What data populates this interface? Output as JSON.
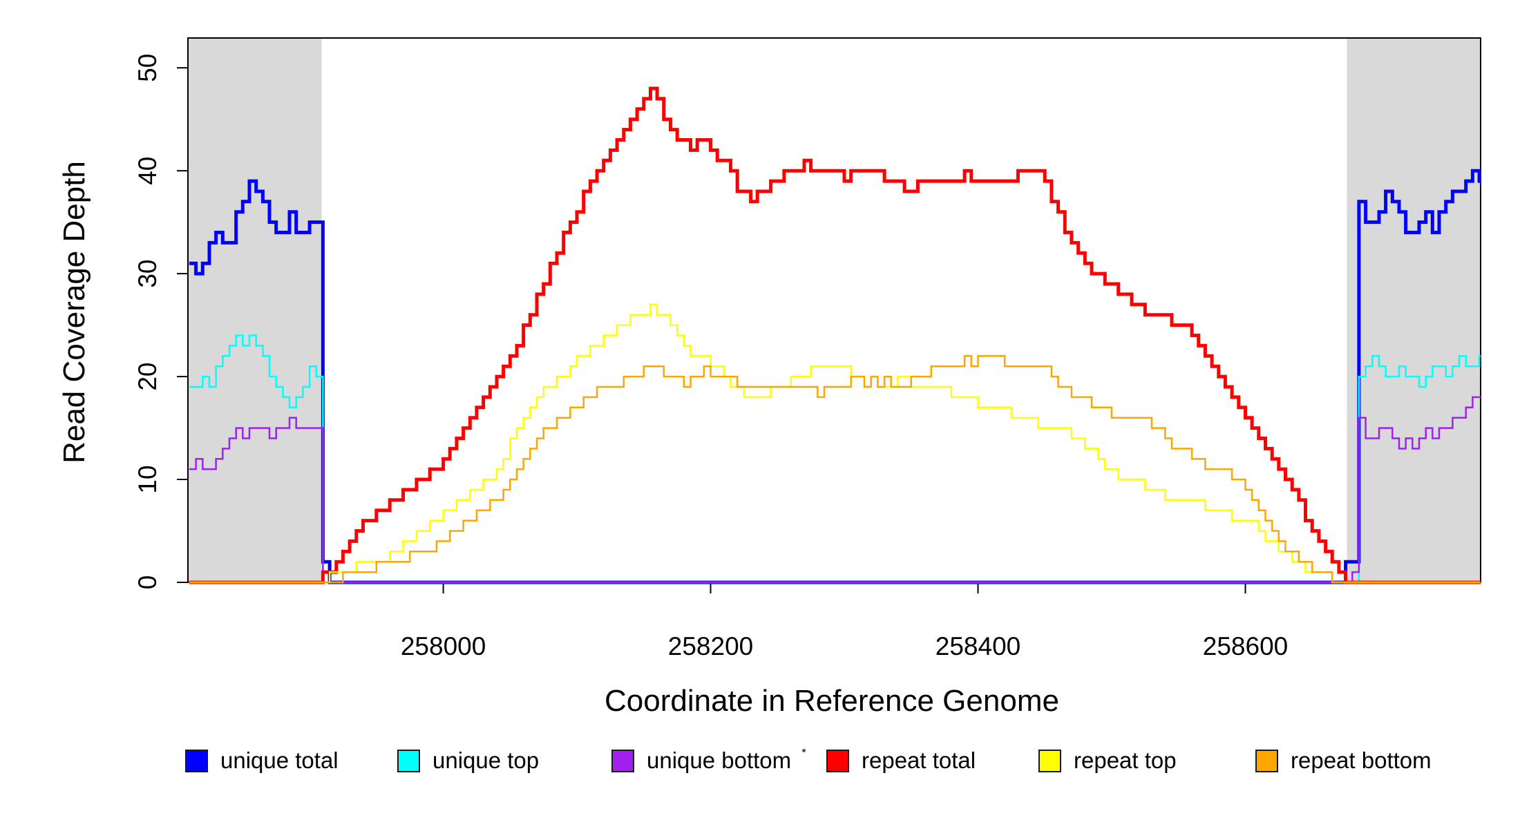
{
  "chart_data": {
    "type": "line",
    "line_style": "step-after",
    "title": "",
    "xlabel": "Coordinate in Reference Genome",
    "ylabel": "Read Coverage Depth",
    "xlim": [
      257809,
      258776
    ],
    "ylim": [
      0,
      52.9
    ],
    "x_ticks": [
      258000,
      258200,
      258400,
      258600
    ],
    "y_ticks": [
      0,
      10,
      20,
      30,
      40,
      50
    ],
    "grid": false,
    "background_color": "#FFFFFF",
    "axis_color": "#000000",
    "shaded_regions": [
      {
        "x0": 257809,
        "x1": 257909,
        "color": "#D9D9D9"
      },
      {
        "x0": 258676,
        "x1": 258776,
        "color": "#D9D9D9"
      }
    ],
    "sampling": {
      "x0": 257810,
      "dx": 5
    },
    "series": [
      {
        "name": "unique total",
        "color": "#0000FF",
        "width": 5,
        "values": [
          31,
          30,
          31,
          33,
          34,
          33,
          33,
          36,
          37,
          39,
          38,
          37,
          35,
          34,
          34,
          36,
          34,
          34,
          35,
          35,
          2,
          0,
          0,
          0,
          0,
          0,
          0,
          0,
          0,
          0,
          0,
          0,
          0,
          0,
          0,
          0,
          0,
          0,
          0,
          0,
          0,
          0,
          0,
          0,
          0,
          0,
          0,
          0,
          0,
          0,
          0,
          0,
          0,
          0,
          0,
          0,
          0,
          0,
          0,
          0,
          0,
          0,
          0,
          0,
          0,
          0,
          0,
          0,
          0,
          0,
          0,
          0,
          0,
          0,
          0,
          0,
          0,
          0,
          0,
          0,
          0,
          0,
          0,
          0,
          0,
          0,
          0,
          0,
          0,
          0,
          0,
          0,
          0,
          0,
          0,
          0,
          0,
          0,
          0,
          0,
          0,
          0,
          0,
          0,
          0,
          0,
          0,
          0,
          0,
          0,
          0,
          0,
          0,
          0,
          0,
          0,
          0,
          0,
          0,
          0,
          0,
          0,
          0,
          0,
          0,
          0,
          0,
          0,
          0,
          0,
          0,
          0,
          0,
          0,
          0,
          0,
          0,
          0,
          0,
          0,
          0,
          0,
          0,
          0,
          0,
          0,
          0,
          0,
          0,
          0,
          0,
          0,
          0,
          0,
          0,
          0,
          0,
          0,
          0,
          0,
          0,
          0,
          0,
          0,
          0,
          0,
          0,
          0,
          0,
          0,
          0,
          0,
          0,
          2,
          2,
          37,
          35,
          35,
          36,
          38,
          37,
          36,
          34,
          34,
          35,
          36,
          34,
          36,
          37,
          38,
          38,
          39,
          40,
          39
        ]
      },
      {
        "name": "unique top",
        "color": "#00FFFF",
        "width": 2.5,
        "values": [
          19,
          19,
          20,
          19,
          21,
          22,
          23,
          24,
          23,
          24,
          23,
          22,
          20,
          19,
          18,
          17,
          18,
          19,
          21,
          20,
          0,
          0,
          0,
          0,
          0,
          0,
          0,
          0,
          0,
          0,
          0,
          0,
          0,
          0,
          0,
          0,
          0,
          0,
          0,
          0,
          0,
          0,
          0,
          0,
          0,
          0,
          0,
          0,
          0,
          0,
          0,
          0,
          0,
          0,
          0,
          0,
          0,
          0,
          0,
          0,
          0,
          0,
          0,
          0,
          0,
          0,
          0,
          0,
          0,
          0,
          0,
          0,
          0,
          0,
          0,
          0,
          0,
          0,
          0,
          0,
          0,
          0,
          0,
          0,
          0,
          0,
          0,
          0,
          0,
          0,
          0,
          0,
          0,
          0,
          0,
          0,
          0,
          0,
          0,
          0,
          0,
          0,
          0,
          0,
          0,
          0,
          0,
          0,
          0,
          0,
          0,
          0,
          0,
          0,
          0,
          0,
          0,
          0,
          0,
          0,
          0,
          0,
          0,
          0,
          0,
          0,
          0,
          0,
          0,
          0,
          0,
          0,
          0,
          0,
          0,
          0,
          0,
          0,
          0,
          0,
          0,
          0,
          0,
          0,
          0,
          0,
          0,
          0,
          0,
          0,
          0,
          0,
          0,
          0,
          0,
          0,
          0,
          0,
          0,
          0,
          0,
          0,
          0,
          0,
          0,
          0,
          0,
          0,
          0,
          0,
          0,
          0,
          0,
          0,
          0,
          20,
          21,
          22,
          21,
          20,
          20,
          21,
          20,
          20,
          19,
          20,
          21,
          21,
          20,
          21,
          22,
          21,
          21,
          22
        ]
      },
      {
        "name": "unique bottom",
        "color": "#A020F0",
        "width": 2.5,
        "values": [
          11,
          12,
          11,
          11,
          12,
          13,
          14,
          15,
          14,
          15,
          15,
          15,
          14,
          15,
          15,
          16,
          15,
          15,
          15,
          15,
          0,
          0,
          0,
          0,
          0,
          0,
          0,
          0,
          0,
          0,
          0,
          0,
          0,
          0,
          0,
          0,
          0,
          0,
          0,
          0,
          0,
          0,
          0,
          0,
          0,
          0,
          0,
          0,
          0,
          0,
          0,
          0,
          0,
          0,
          0,
          0,
          0,
          0,
          0,
          0,
          0,
          0,
          0,
          0,
          0,
          0,
          0,
          0,
          0,
          0,
          0,
          0,
          0,
          0,
          0,
          0,
          0,
          0,
          0,
          0,
          0,
          0,
          0,
          0,
          0,
          0,
          0,
          0,
          0,
          0,
          0,
          0,
          0,
          0,
          0,
          0,
          0,
          0,
          0,
          0,
          0,
          0,
          0,
          0,
          0,
          0,
          0,
          0,
          0,
          0,
          0,
          0,
          0,
          0,
          0,
          0,
          0,
          0,
          0,
          0,
          0,
          0,
          0,
          0,
          0,
          0,
          0,
          0,
          0,
          0,
          0,
          0,
          0,
          0,
          0,
          0,
          0,
          0,
          0,
          0,
          0,
          0,
          0,
          0,
          0,
          0,
          0,
          0,
          0,
          0,
          0,
          0,
          0,
          0,
          0,
          0,
          0,
          0,
          0,
          0,
          0,
          0,
          0,
          0,
          0,
          0,
          0,
          0,
          0,
          0,
          0,
          0,
          0,
          0,
          1,
          16,
          14,
          14,
          15,
          15,
          14,
          13,
          14,
          13,
          14,
          15,
          14,
          15,
          15,
          16,
          16,
          17,
          18,
          18
        ]
      },
      {
        "name": "repeat total",
        "color": "#FF0000",
        "width": 5,
        "values": [
          0,
          0,
          0,
          0,
          0,
          0,
          0,
          0,
          0,
          0,
          0,
          0,
          0,
          0,
          0,
          0,
          0,
          0,
          0,
          0,
          1,
          1,
          2,
          3,
          4,
          5,
          6,
          6,
          7,
          7,
          8,
          8,
          9,
          9,
          10,
          10,
          11,
          11,
          12,
          13,
          14,
          15,
          16,
          17,
          18,
          19,
          20,
          21,
          22,
          23,
          25,
          26,
          28,
          29,
          31,
          32,
          34,
          35,
          36,
          38,
          39,
          40,
          41,
          42,
          43,
          44,
          45,
          46,
          47,
          48,
          47,
          45,
          44,
          43,
          43,
          42,
          43,
          43,
          42,
          41,
          41,
          40,
          38,
          38,
          37,
          38,
          38,
          39,
          39,
          40,
          40,
          40,
          41,
          40,
          40,
          40,
          40,
          40,
          39,
          40,
          40,
          40,
          40,
          40,
          39,
          39,
          39,
          38,
          38,
          39,
          39,
          39,
          39,
          39,
          39,
          39,
          40,
          39,
          39,
          39,
          39,
          39,
          39,
          39,
          40,
          40,
          40,
          40,
          39,
          37,
          36,
          34,
          33,
          32,
          31,
          30,
          30,
          29,
          29,
          28,
          28,
          27,
          27,
          26,
          26,
          26,
          26,
          25,
          25,
          25,
          24,
          23,
          22,
          21,
          20,
          19,
          18,
          17,
          16,
          15,
          14,
          13,
          12,
          11,
          10,
          9,
          8,
          6,
          5,
          4,
          3,
          2,
          1,
          0,
          0,
          0,
          0,
          0,
          0,
          0,
          0,
          0,
          0,
          0,
          0,
          0,
          0,
          0,
          0,
          0,
          0,
          0,
          0,
          0
        ]
      },
      {
        "name": "repeat top",
        "color": "#FFFF00",
        "width": 2.5,
        "values": [
          0,
          0,
          0,
          0,
          0,
          0,
          0,
          0,
          0,
          0,
          0,
          0,
          0,
          0,
          0,
          0,
          0,
          0,
          0,
          0,
          0,
          1,
          1,
          1,
          1,
          2,
          2,
          2,
          2,
          2,
          3,
          3,
          4,
          4,
          5,
          5,
          6,
          6,
          7,
          7,
          8,
          8,
          9,
          9,
          10,
          10,
          11,
          12,
          14,
          15,
          16,
          17,
          18,
          19,
          19,
          20,
          20,
          21,
          22,
          22,
          23,
          23,
          24,
          24,
          25,
          25,
          26,
          26,
          26,
          27,
          26,
          26,
          25,
          24,
          23,
          22,
          22,
          22,
          21,
          21,
          20,
          19,
          19,
          18,
          18,
          18,
          18,
          19,
          19,
          19,
          20,
          20,
          20,
          21,
          21,
          21,
          21,
          21,
          21,
          20,
          20,
          19,
          20,
          19,
          19,
          19,
          20,
          20,
          19,
          19,
          19,
          19,
          19,
          19,
          18,
          18,
          18,
          18,
          17,
          17,
          17,
          17,
          17,
          16,
          16,
          16,
          16,
          15,
          15,
          15,
          15,
          15,
          14,
          14,
          13,
          13,
          12,
          11,
          11,
          10,
          10,
          10,
          10,
          9,
          9,
          9,
          8,
          8,
          8,
          8,
          8,
          8,
          7,
          7,
          7,
          7,
          6,
          6,
          6,
          6,
          5,
          4,
          4,
          3,
          3,
          2,
          2,
          1,
          1,
          1,
          1,
          0,
          0,
          0,
          0,
          0,
          0,
          0,
          0,
          0,
          0,
          0,
          0,
          0,
          0,
          0,
          0,
          0,
          0,
          0,
          0,
          0,
          0,
          0
        ]
      },
      {
        "name": "repeat bottom",
        "color": "#FFA500",
        "width": 2.5,
        "values": [
          0,
          0,
          0,
          0,
          0,
          0,
          0,
          0,
          0,
          0,
          0,
          0,
          0,
          0,
          0,
          0,
          0,
          0,
          0,
          0,
          0,
          0,
          0,
          1,
          1,
          1,
          1,
          1,
          2,
          2,
          2,
          2,
          2,
          3,
          3,
          3,
          3,
          4,
          4,
          5,
          5,
          6,
          6,
          7,
          7,
          8,
          8,
          9,
          10,
          11,
          12,
          13,
          14,
          15,
          15,
          16,
          16,
          17,
          17,
          18,
          18,
          19,
          19,
          19,
          19,
          20,
          20,
          20,
          21,
          21,
          21,
          20,
          20,
          20,
          19,
          20,
          20,
          21,
          20,
          20,
          20,
          20,
          19,
          19,
          19,
          19,
          19,
          19,
          19,
          19,
          19,
          19,
          19,
          19,
          18,
          19,
          19,
          19,
          19,
          20,
          20,
          19,
          20,
          19,
          20,
          19,
          19,
          19,
          20,
          20,
          20,
          21,
          21,
          21,
          21,
          21,
          22,
          21,
          22,
          22,
          22,
          22,
          21,
          21,
          21,
          21,
          21,
          21,
          21,
          20,
          19,
          19,
          18,
          18,
          18,
          17,
          17,
          17,
          16,
          16,
          16,
          16,
          16,
          16,
          15,
          15,
          14,
          13,
          13,
          13,
          12,
          12,
          11,
          11,
          11,
          11,
          10,
          10,
          9,
          8,
          7,
          6,
          5,
          4,
          3,
          3,
          2,
          2,
          1,
          1,
          1,
          0,
          0,
          0,
          0,
          0,
          0,
          0,
          0,
          0,
          0,
          0,
          0,
          0,
          0,
          0,
          0,
          0,
          0,
          0,
          0,
          0,
          0,
          0
        ]
      }
    ],
    "legend": {
      "position": "bottom",
      "items": [
        {
          "label": "unique total",
          "color": "#0000FF"
        },
        {
          "label": "unique top",
          "color": "#00FFFF"
        },
        {
          "label": "unique bottom",
          "color": "#A020F0"
        },
        {
          "label": "repeat total",
          "color": "#FF0000"
        },
        {
          "label": "repeat top",
          "color": "#FFFF00"
        },
        {
          "label": "repeat bottom",
          "color": "#FFA500"
        }
      ]
    }
  }
}
